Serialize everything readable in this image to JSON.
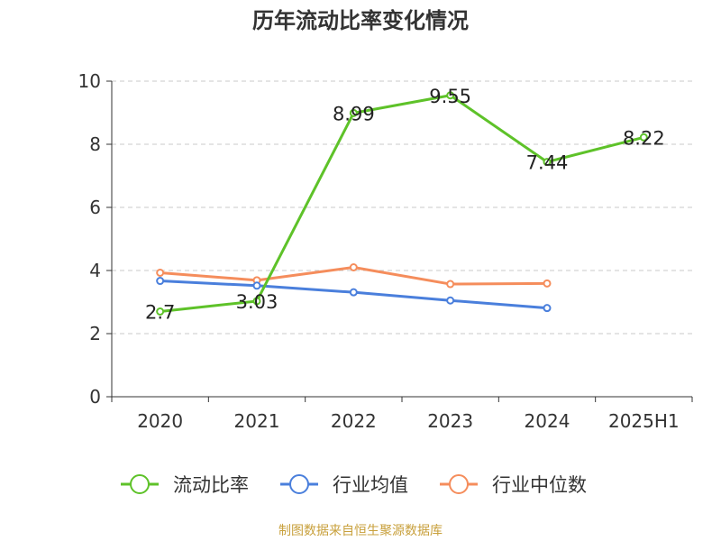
{
  "chart_data": {
    "type": "line",
    "title": "历年流动比率变化情况",
    "categories": [
      "2020",
      "2021",
      "2022",
      "2023",
      "2024",
      "2025H1"
    ],
    "ylim": [
      0,
      10
    ],
    "yticks": [
      0,
      2,
      4,
      6,
      8,
      10
    ],
    "grid": true,
    "legend_position": "bottom",
    "series": [
      {
        "name": "流动比率",
        "color": "#5ec229",
        "values": [
          2.7,
          3.03,
          8.99,
          9.55,
          7.44,
          8.22
        ],
        "labels": [
          "2.7",
          "3.03",
          "8.99",
          "9.55",
          "7.44",
          "8.22"
        ]
      },
      {
        "name": "行业均值",
        "color": "#4a7fdc",
        "values": [
          3.67,
          3.52,
          3.31,
          3.05,
          2.81,
          null
        ]
      },
      {
        "name": "行业中位数",
        "color": "#f58d5c",
        "values": [
          3.93,
          3.69,
          4.1,
          3.57,
          3.59,
          null
        ]
      }
    ]
  },
  "footer": {
    "source": "制图数据来自恒生聚源数据库"
  }
}
